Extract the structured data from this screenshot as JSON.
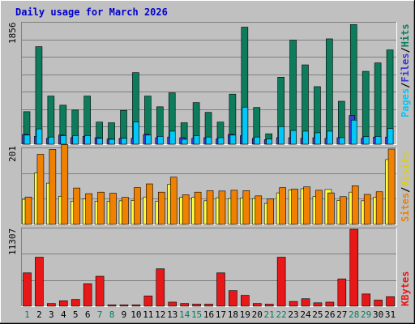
{
  "title": "Daily usage for March 2026",
  "colors": {
    "background": "#c0c0c0",
    "grid": "#808080",
    "hits": "#0c7c5c",
    "files": "#00c8f8",
    "pages": "#3a3ad0",
    "visits": "#ffff40",
    "sites": "#f08000",
    "kbytes": "#e81818",
    "weekday": "#000000",
    "weekend": "#00805a"
  },
  "panels": {
    "top": {
      "ymax_label": "1856",
      "legend": {
        "pages": "Pages",
        "files": "Files",
        "hits": "Hits",
        "sep": "/"
      }
    },
    "middle": {
      "ymax_label": "201",
      "legend": {
        "sites": "Sites",
        "visits": "Visits",
        "sep": "/"
      }
    },
    "bottom": {
      "ymax_label": "11307",
      "legend": {
        "kbytes": "KBytes"
      }
    }
  },
  "chart_data": {
    "type": "bar",
    "title": "Daily usage for March 2026",
    "categories": [
      "1",
      "2",
      "3",
      "4",
      "5",
      "6",
      "7",
      "8",
      "9",
      "10",
      "11",
      "12",
      "13",
      "14",
      "15",
      "16",
      "17",
      "18",
      "19",
      "20",
      "21",
      "22",
      "23",
      "24",
      "25",
      "26",
      "27",
      "28",
      "29",
      "30",
      "31"
    ],
    "weekend_days": [
      "1",
      "7",
      "8",
      "14",
      "15",
      "21",
      "22",
      "28",
      "29"
    ],
    "panels": [
      {
        "name": "top",
        "ymax": 1856,
        "series": [
          {
            "name": "Hits",
            "values": [
              500,
              1500,
              740,
              600,
              525,
              740,
              340,
              330,
              520,
              1100,
              740,
              575,
              790,
              330,
              640,
              490,
              340,
              770,
              1800,
              565,
              160,
              1030,
              1600,
              1220,
              885,
              1620,
              660,
              1840,
              1120,
              1250,
              1450
            ]
          },
          {
            "name": "Files",
            "values": [
              140,
              235,
              110,
              130,
              130,
              130,
              90,
              75,
              90,
              340,
              140,
              120,
              200,
              75,
              130,
              110,
              100,
              140,
              570,
              110,
              80,
              270,
              210,
              200,
              175,
              200,
              100,
              370,
              115,
              120,
              240
            ]
          },
          {
            "name": "Pages",
            "values": [
              150,
              120,
              90,
              140,
              100,
              120,
              100,
              80,
              90,
              90,
              150,
              100,
              110,
              100,
              90,
              100,
              80,
              150,
              130,
              90,
              70,
              100,
              100,
              90,
              100,
              90,
              100,
              440,
              90,
              110,
              110
            ]
          }
        ]
      },
      {
        "name": "middle",
        "ymax": 201,
        "series": [
          {
            "name": "Visits",
            "values": [
              67,
              137,
              110,
              75,
              62,
              68,
              62,
              61,
              63,
              64,
              73,
              62,
              107,
              72,
              72,
              63,
              71,
              69,
              70,
              69,
              56,
              84,
              92,
              95,
              74,
              93,
              64,
              86,
              63,
              72,
              173
            ]
          },
          {
            "name": "Sites",
            "values": [
              73,
              187,
              200,
              213,
              97,
              82,
              86,
              83,
              72,
              98,
              108,
              86,
              126,
              79,
              86,
              90,
              89,
              91,
              90,
              76,
              68,
              98,
              94,
              100,
              91,
              84,
              74,
              103,
              80,
              87,
              201
            ]
          }
        ]
      },
      {
        "name": "bottom",
        "ymax": 11307,
        "series": [
          {
            "name": "KBytes",
            "values": [
              4900,
              7200,
              400,
              800,
              1000,
              3300,
              4400,
              200,
              200,
              200,
              1500,
              5500,
              600,
              400,
              300,
              300,
              4900,
              2300,
              1600,
              400,
              300,
              7200,
              700,
              1100,
              500,
              600,
              4000,
              11307,
              1800,
              900,
              1400
            ]
          }
        ]
      }
    ]
  }
}
